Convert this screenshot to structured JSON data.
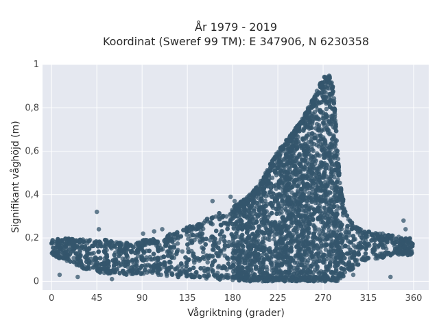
{
  "chart_data": {
    "type": "scatter",
    "title_lines": [
      "År 1979 - 2019",
      "Koordinat (Sweref 99 TM): E 347906, N 6230358"
    ],
    "xlabel": "Vågriktning (grader)",
    "ylabel": "Signifikant våghöjd (m)",
    "xlim": [
      -9,
      375
    ],
    "ylim": [
      -0.04,
      1.0
    ],
    "x_ticks": [
      0,
      45,
      90,
      135,
      180,
      225,
      270,
      315,
      360
    ],
    "y_ticks": [
      {
        "value": 0,
        "label": "0"
      },
      {
        "value": 0.2,
        "label": "0,2"
      },
      {
        "value": 0.4,
        "label": "0,4"
      },
      {
        "value": 0.6,
        "label": "0,6"
      },
      {
        "value": 0.8,
        "label": "0,8"
      },
      {
        "value": 1,
        "label": "1"
      }
    ],
    "grid": true,
    "colors": {
      "background": "#e5e8f0",
      "grid": "#ffffff",
      "marker": "#34566c"
    },
    "series": [
      {
        "envelope_upper": [
          [
            0,
            0.19
          ],
          [
            10,
            0.2
          ],
          [
            20,
            0.2
          ],
          [
            30,
            0.2
          ],
          [
            45,
            0.19
          ],
          [
            60,
            0.19
          ],
          [
            75,
            0.18
          ],
          [
            90,
            0.19
          ],
          [
            105,
            0.2
          ],
          [
            120,
            0.22
          ],
          [
            135,
            0.25
          ],
          [
            150,
            0.28
          ],
          [
            165,
            0.31
          ],
          [
            180,
            0.34
          ],
          [
            195,
            0.39
          ],
          [
            205,
            0.44
          ],
          [
            215,
            0.52
          ],
          [
            225,
            0.6
          ],
          [
            235,
            0.66
          ],
          [
            245,
            0.72
          ],
          [
            255,
            0.8
          ],
          [
            262,
            0.86
          ],
          [
            268,
            0.92
          ],
          [
            272,
            0.95
          ],
          [
            276,
            0.95
          ],
          [
            280,
            0.9
          ],
          [
            283,
            0.7
          ],
          [
            287,
            0.45
          ],
          [
            292,
            0.33
          ],
          [
            300,
            0.26
          ],
          [
            315,
            0.23
          ],
          [
            330,
            0.22
          ],
          [
            345,
            0.21
          ],
          [
            360,
            0.2
          ]
        ],
        "envelope_lower": [
          [
            0,
            0.12
          ],
          [
            10,
            0.1
          ],
          [
            20,
            0.08
          ],
          [
            30,
            0.06
          ],
          [
            45,
            0.04
          ],
          [
            60,
            0.03
          ],
          [
            75,
            0.03
          ],
          [
            90,
            0.03
          ],
          [
            105,
            0.03
          ],
          [
            120,
            0.02
          ],
          [
            135,
            0.02
          ],
          [
            150,
            0.01
          ],
          [
            165,
            0.01
          ],
          [
            180,
            0.0
          ],
          [
            195,
            0.0
          ],
          [
            210,
            0.0
          ],
          [
            225,
            0.0
          ],
          [
            240,
            0.0
          ],
          [
            255,
            0.0
          ],
          [
            270,
            0.0
          ],
          [
            280,
            0.0
          ],
          [
            290,
            0.02
          ],
          [
            300,
            0.06
          ],
          [
            315,
            0.1
          ],
          [
            330,
            0.11
          ],
          [
            345,
            0.12
          ],
          [
            360,
            0.12
          ]
        ],
        "outliers": [
          [
            45,
            0.32
          ],
          [
            47,
            0.24
          ],
          [
            91,
            0.22
          ],
          [
            102,
            0.23
          ],
          [
            110,
            0.24
          ],
          [
            160,
            0.37
          ],
          [
            178,
            0.39
          ],
          [
            182,
            0.37
          ],
          [
            350,
            0.28
          ],
          [
            352,
            0.24
          ],
          [
            8,
            0.03
          ],
          [
            26,
            0.02
          ],
          [
            60,
            0.01
          ],
          [
            300,
            0.03
          ],
          [
            337,
            0.02
          ]
        ]
      }
    ]
  }
}
